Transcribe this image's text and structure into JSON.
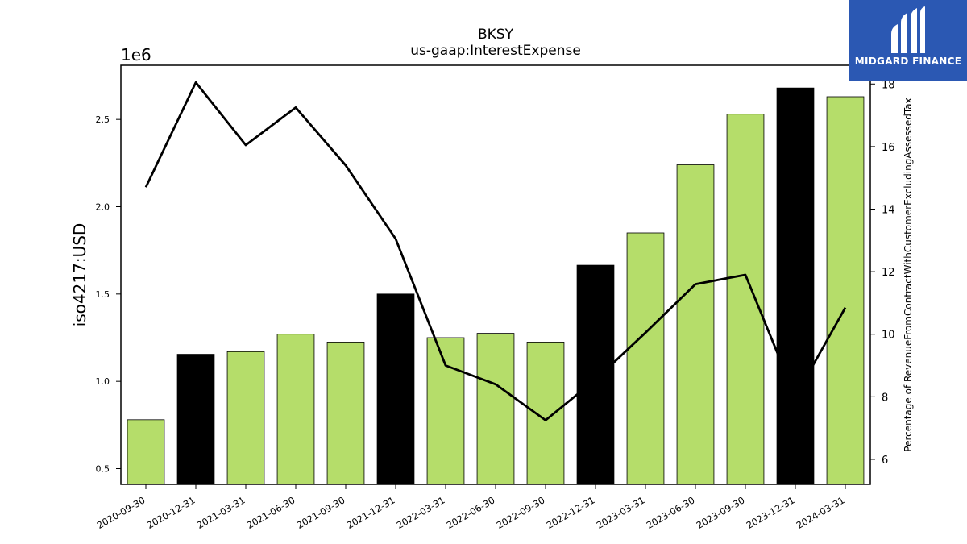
{
  "chart_data": {
    "type": "bar",
    "title": "BKSY",
    "subtitle": "us-gaap:InterestExpense",
    "ylabel": "iso4217:USD",
    "y_offset_label": "1e6",
    "y2label": "Percentage of RevenueFromContractWithCustomerExcludingAssessedTax",
    "categories": [
      "2020-09-30",
      "2020-12-31",
      "2021-03-31",
      "2021-06-30",
      "2021-09-30",
      "2021-12-31",
      "2022-03-31",
      "2022-06-30",
      "2022-09-30",
      "2022-12-31",
      "2023-03-31",
      "2023-06-30",
      "2023-09-30",
      "2023-12-31",
      "2024-03-31"
    ],
    "values": [
      0.78,
      1.155,
      1.17,
      1.27,
      1.225,
      1.5,
      1.25,
      1.275,
      1.225,
      1.665,
      1.85,
      2.24,
      2.53,
      2.68,
      2.63
    ],
    "bar_colors": [
      "#b5dd6a",
      "#000000",
      "#b5dd6a",
      "#b5dd6a",
      "#b5dd6a",
      "#000000",
      "#b5dd6a",
      "#b5dd6a",
      "#b5dd6a",
      "#000000",
      "#b5dd6a",
      "#b5dd6a",
      "#b5dd6a",
      "#000000",
      "#b5dd6a"
    ],
    "ylim": [
      0.41,
      2.81
    ],
    "yticks": [
      0.5,
      1.0,
      1.5,
      2.0,
      2.5
    ],
    "line_series": {
      "values": [
        14.7,
        18.05,
        16.05,
        17.25,
        15.4,
        13.05,
        9.0,
        8.4,
        7.25,
        8.55,
        10.05,
        11.6,
        11.9,
        8.0,
        10.85
      ],
      "color": "#000000"
    },
    "y2lim": [
      5.2,
      18.6
    ],
    "y2ticks": [
      6,
      8,
      10,
      12,
      14,
      16,
      18
    ]
  },
  "logo": {
    "text": "MIDGARD FINANCE",
    "color": "#2b58b3"
  }
}
